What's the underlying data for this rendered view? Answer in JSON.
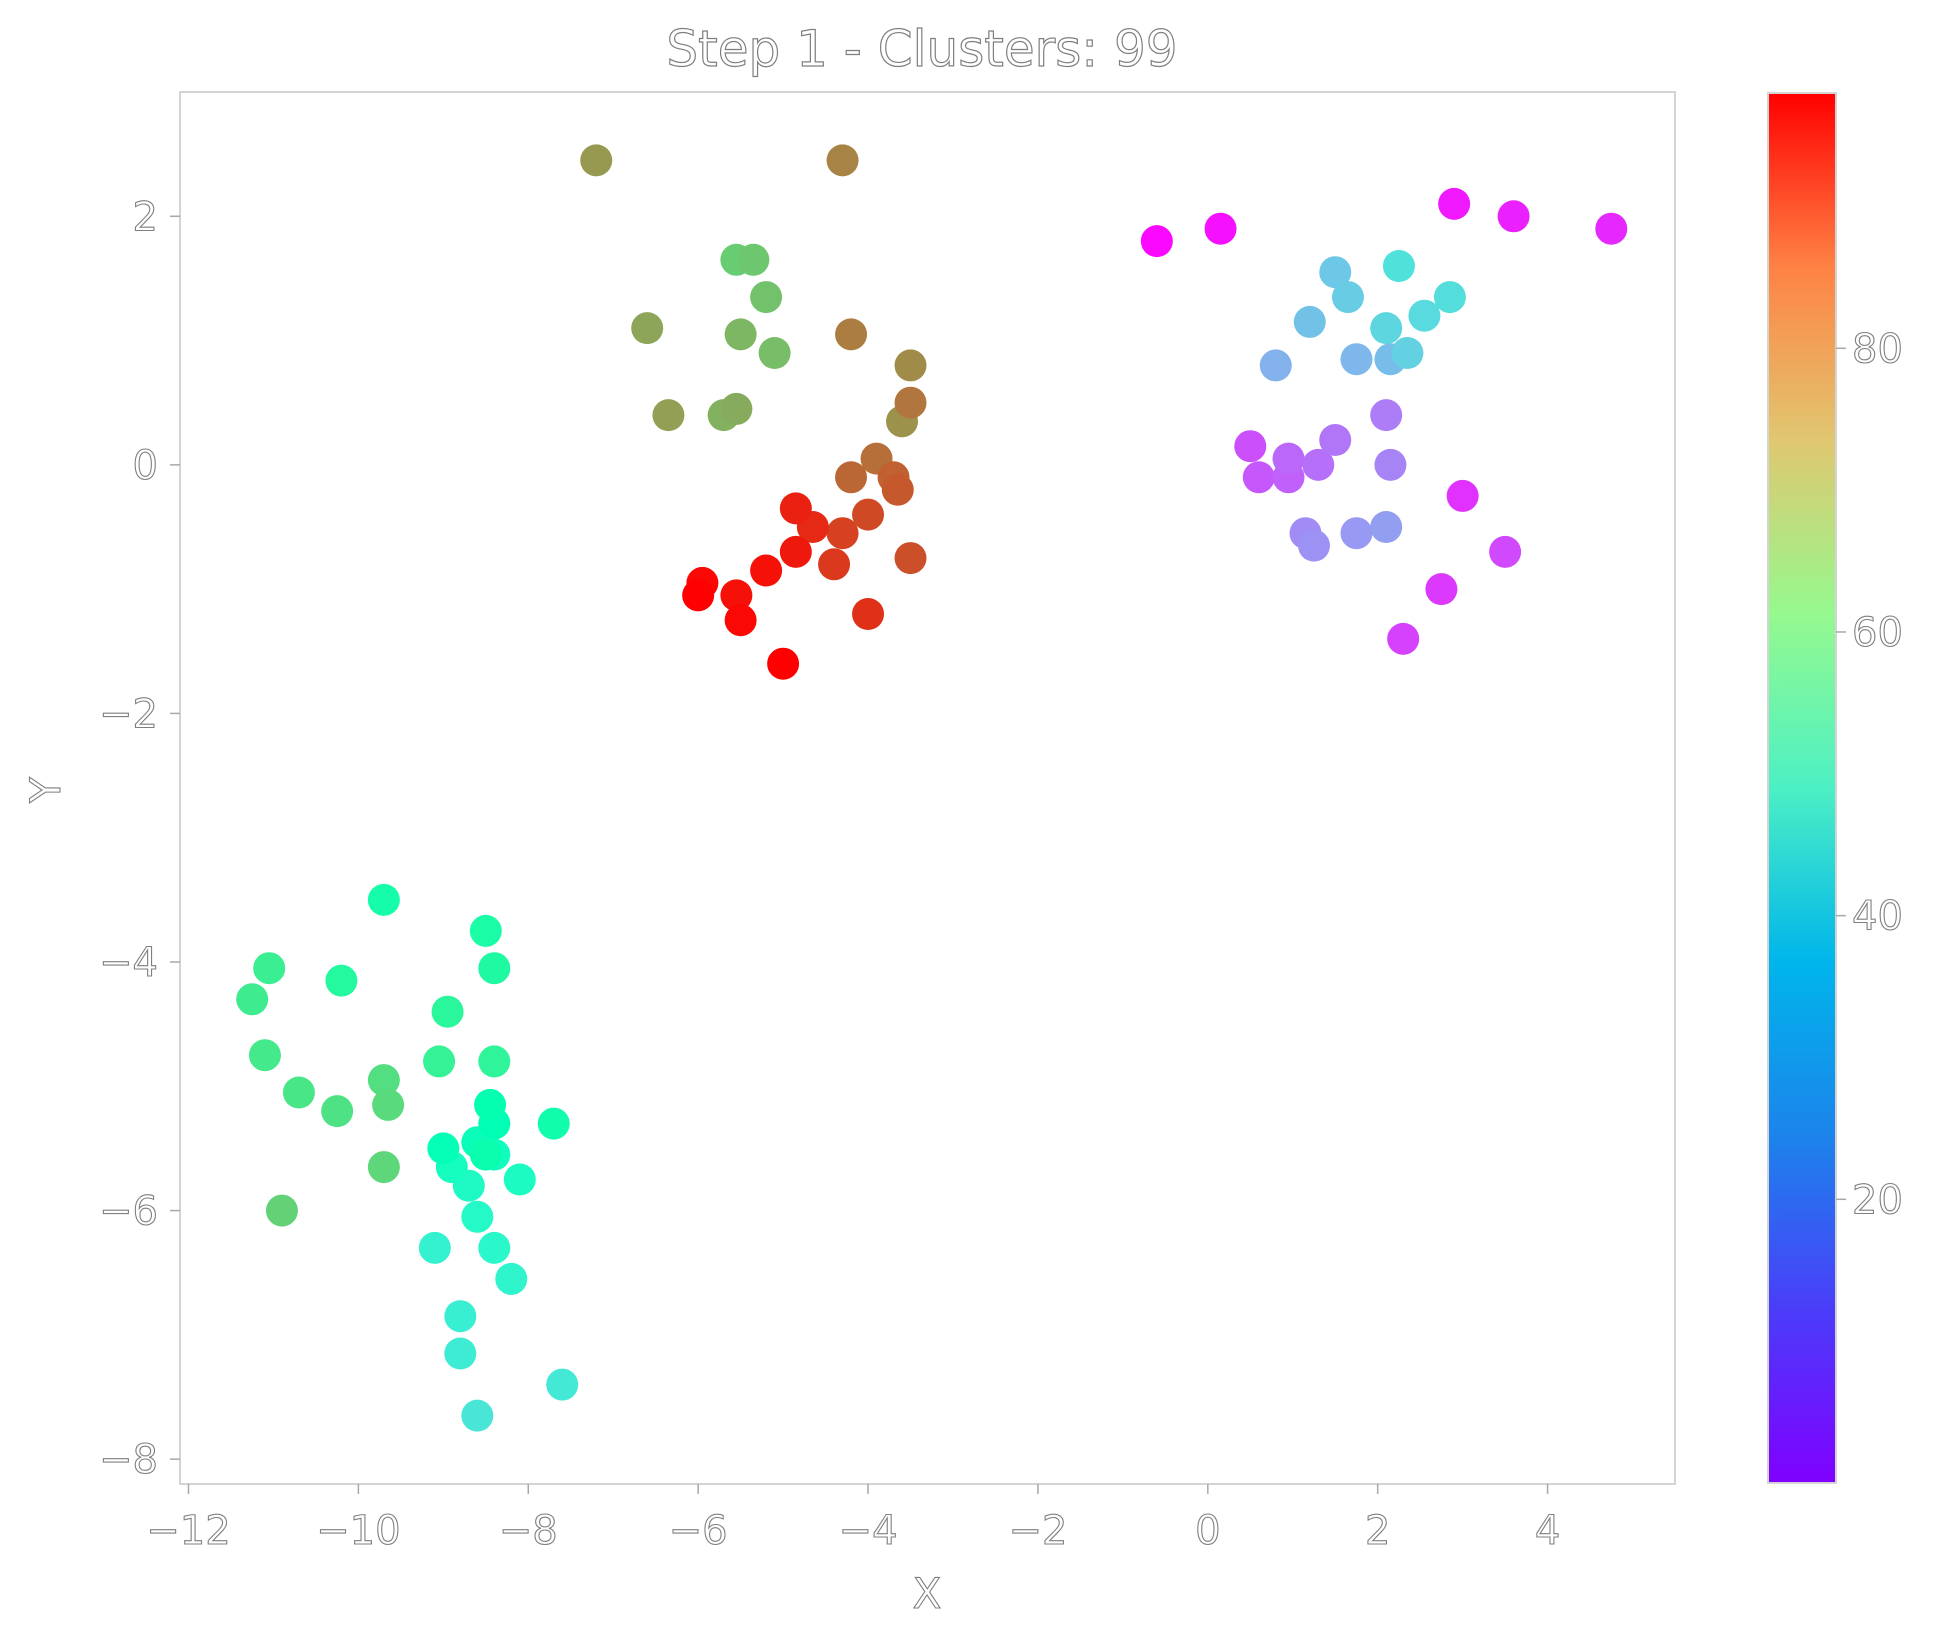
{
  "chart_data": {
    "type": "scatter",
    "title": "Step 1 - Clusters: 99",
    "xlabel": "X",
    "ylabel": "Y",
    "xlim": [
      -12.1,
      5.5
    ],
    "ylim": [
      -8.2,
      3.0
    ],
    "xticks": [
      -12,
      -10,
      -8,
      -6,
      -4,
      -2,
      0,
      2,
      4
    ],
    "yticks": [
      -8,
      -6,
      -4,
      -2,
      0,
      2
    ],
    "colorbar": {
      "colormap": "rainbow",
      "range": [
        0,
        98
      ],
      "ticks": [
        20,
        40,
        60,
        80
      ]
    },
    "grid": false,
    "points": [
      {
        "x": -0.6,
        "y": 1.8,
        "c": 1
      },
      {
        "x": 0.15,
        "y": 1.9,
        "c": 2
      },
      {
        "x": 2.9,
        "y": 2.1,
        "c": 3
      },
      {
        "x": 3.6,
        "y": 2.0,
        "c": 4
      },
      {
        "x": 4.75,
        "y": 1.9,
        "c": 5
      },
      {
        "x": 3.0,
        "y": -0.25,
        "c": 6
      },
      {
        "x": 2.75,
        "y": -1.0,
        "c": 7
      },
      {
        "x": 2.3,
        "y": -1.4,
        "c": 8
      },
      {
        "x": 3.5,
        "y": -0.7,
        "c": 9
      },
      {
        "x": 0.5,
        "y": 0.15,
        "c": 10
      },
      {
        "x": 0.6,
        "y": -0.1,
        "c": 11
      },
      {
        "x": 0.95,
        "y": -0.1,
        "c": 12
      },
      {
        "x": 0.95,
        "y": 0.05,
        "c": 13
      },
      {
        "x": 1.3,
        "y": 0.0,
        "c": 14
      },
      {
        "x": 1.5,
        "y": 0.2,
        "c": 15
      },
      {
        "x": 2.1,
        "y": 0.4,
        "c": 16
      },
      {
        "x": 2.15,
        "y": 0.0,
        "c": 17
      },
      {
        "x": 1.15,
        "y": -0.55,
        "c": 18
      },
      {
        "x": 1.25,
        "y": -0.65,
        "c": 19
      },
      {
        "x": 1.75,
        "y": -0.55,
        "c": 20
      },
      {
        "x": 2.1,
        "y": -0.5,
        "c": 21
      },
      {
        "x": 0.8,
        "y": 0.8,
        "c": 24
      },
      {
        "x": 1.75,
        "y": 0.85,
        "c": 25
      },
      {
        "x": 2.15,
        "y": 0.85,
        "c": 26
      },
      {
        "x": 1.2,
        "y": 1.15,
        "c": 27
      },
      {
        "x": 1.5,
        "y": 1.55,
        "c": 28
      },
      {
        "x": 1.65,
        "y": 1.35,
        "c": 29
      },
      {
        "x": 2.35,
        "y": 0.9,
        "c": 30
      },
      {
        "x": 2.1,
        "y": 1.1,
        "c": 31
      },
      {
        "x": 2.55,
        "y": 1.2,
        "c": 32
      },
      {
        "x": 2.85,
        "y": 1.35,
        "c": 33
      },
      {
        "x": 2.25,
        "y": 1.6,
        "c": 34
      },
      {
        "x": -8.6,
        "y": -7.65,
        "c": 35
      },
      {
        "x": -7.6,
        "y": -7.4,
        "c": 36
      },
      {
        "x": -8.8,
        "y": -7.15,
        "c": 37
      },
      {
        "x": -8.8,
        "y": -6.85,
        "c": 38
      },
      {
        "x": -9.1,
        "y": -6.3,
        "c": 39
      },
      {
        "x": -8.2,
        "y": -6.55,
        "c": 40
      },
      {
        "x": -8.4,
        "y": -6.3,
        "c": 41
      },
      {
        "x": -8.6,
        "y": -6.05,
        "c": 42
      },
      {
        "x": -8.7,
        "y": -5.8,
        "c": 43
      },
      {
        "x": -8.1,
        "y": -5.75,
        "c": 44
      },
      {
        "x": -8.9,
        "y": -5.65,
        "c": 45
      },
      {
        "x": -8.4,
        "y": -5.55,
        "c": 46
      },
      {
        "x": -8.6,
        "y": -5.45,
        "c": 47
      },
      {
        "x": -9.0,
        "y": -5.5,
        "c": 48
      },
      {
        "x": -8.4,
        "y": -5.3,
        "c": 49
      },
      {
        "x": -8.45,
        "y": -5.15,
        "c": 50
      },
      {
        "x": -8.5,
        "y": -5.55,
        "c": 51
      },
      {
        "x": -7.7,
        "y": -5.3,
        "c": 52
      },
      {
        "x": -9.7,
        "y": -3.5,
        "c": 53
      },
      {
        "x": -8.5,
        "y": -3.75,
        "c": 54
      },
      {
        "x": -8.4,
        "y": -4.05,
        "c": 55
      },
      {
        "x": -10.2,
        "y": -4.15,
        "c": 56
      },
      {
        "x": -8.95,
        "y": -4.4,
        "c": 57
      },
      {
        "x": -8.4,
        "y": -4.8,
        "c": 58
      },
      {
        "x": -9.05,
        "y": -4.8,
        "c": 59
      },
      {
        "x": -11.05,
        "y": -4.05,
        "c": 60
      },
      {
        "x": -11.25,
        "y": -4.3,
        "c": 61
      },
      {
        "x": -11.1,
        "y": -4.75,
        "c": 62
      },
      {
        "x": -10.7,
        "y": -5.05,
        "c": 63
      },
      {
        "x": -10.25,
        "y": -5.2,
        "c": 64
      },
      {
        "x": -9.7,
        "y": -4.95,
        "c": 65
      },
      {
        "x": -9.65,
        "y": -5.15,
        "c": 66
      },
      {
        "x": -9.7,
        "y": -5.65,
        "c": 67
      },
      {
        "x": -10.9,
        "y": -6.0,
        "c": 68
      },
      {
        "x": -5.55,
        "y": 1.65,
        "c": 69
      },
      {
        "x": -5.35,
        "y": 1.65,
        "c": 70
      },
      {
        "x": -5.2,
        "y": 1.35,
        "c": 71
      },
      {
        "x": -5.1,
        "y": 0.9,
        "c": 72
      },
      {
        "x": -5.5,
        "y": 1.05,
        "c": 73
      },
      {
        "x": -5.7,
        "y": 0.4,
        "c": 74
      },
      {
        "x": -5.55,
        "y": 0.45,
        "c": 75
      },
      {
        "x": -6.6,
        "y": 1.1,
        "c": 76
      },
      {
        "x": -6.35,
        "y": 0.4,
        "c": 77
      },
      {
        "x": -7.2,
        "y": 2.45,
        "c": 78
      },
      {
        "x": -3.6,
        "y": 0.35,
        "c": 79
      },
      {
        "x": -3.5,
        "y": 0.8,
        "c": 80
      },
      {
        "x": -4.3,
        "y": 2.45,
        "c": 81
      },
      {
        "x": -4.2,
        "y": 1.05,
        "c": 82
      },
      {
        "x": -3.5,
        "y": 0.5,
        "c": 83
      },
      {
        "x": -3.9,
        "y": 0.05,
        "c": 84
      },
      {
        "x": -4.2,
        "y": -0.1,
        "c": 85
      },
      {
        "x": -3.7,
        "y": -0.1,
        "c": 86
      },
      {
        "x": -3.65,
        "y": -0.2,
        "c": 87
      },
      {
        "x": -3.5,
        "y": -0.75,
        "c": 88
      },
      {
        "x": -4.0,
        "y": -0.4,
        "c": 89
      },
      {
        "x": -4.3,
        "y": -0.55,
        "c": 90
      },
      {
        "x": -4.4,
        "y": -0.8,
        "c": 91
      },
      {
        "x": -4.0,
        "y": -1.2,
        "c": 92
      },
      {
        "x": -4.65,
        "y": -0.5,
        "c": 93
      },
      {
        "x": -4.85,
        "y": -0.35,
        "c": 94
      },
      {
        "x": -4.85,
        "y": -0.7,
        "c": 95
      },
      {
        "x": -5.2,
        "y": -0.85,
        "c": 96
      },
      {
        "x": -5.55,
        "y": -1.05,
        "c": 96
      },
      {
        "x": -5.5,
        "y": -1.25,
        "c": 97
      },
      {
        "x": -5.95,
        "y": -0.95,
        "c": 97
      },
      {
        "x": -6.0,
        "y": -1.05,
        "c": 98
      },
      {
        "x": -5.0,
        "y": -1.6,
        "c": 98
      }
    ]
  }
}
